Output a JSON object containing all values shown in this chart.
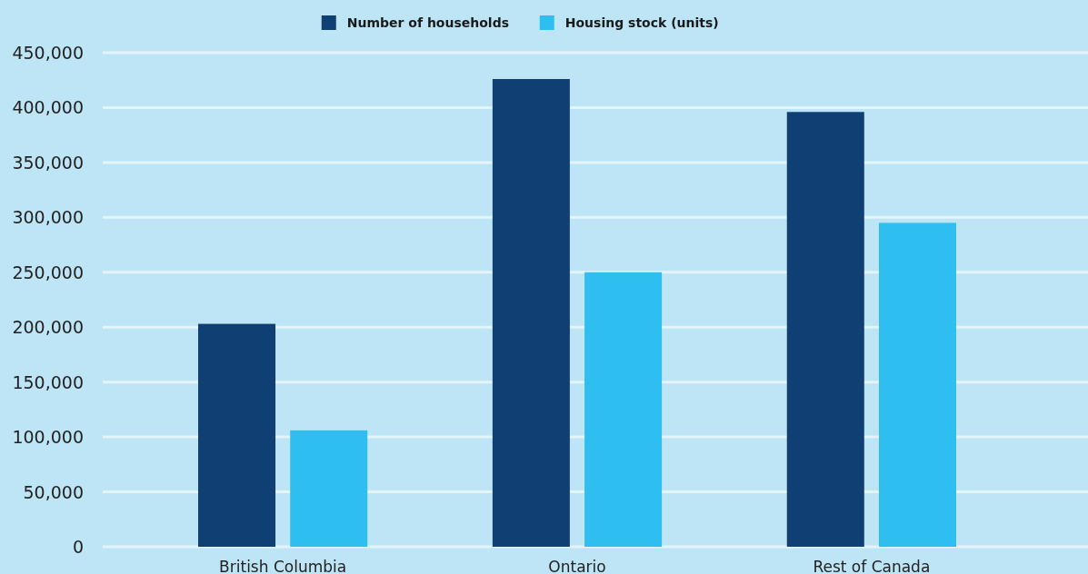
{
  "chart_data": {
    "type": "bar",
    "categories": [
      "British Columbia",
      "Ontario",
      "Rest of Canada"
    ],
    "series": [
      {
        "name": "Number of households",
        "color": "#0f3f73",
        "values": [
          203000,
          426000,
          396000
        ]
      },
      {
        "name": "Housing stock (units)",
        "color": "#2ebeef",
        "values": [
          106000,
          250000,
          295000
        ]
      }
    ],
    "ylim": [
      0,
      450000
    ],
    "yticks": [
      {
        "value": 0,
        "label": "0"
      },
      {
        "value": 50000,
        "label": "50,000"
      },
      {
        "value": 100000,
        "label": "100,000"
      },
      {
        "value": 150000,
        "label": "150,000"
      },
      {
        "value": 200000,
        "label": "200,000"
      },
      {
        "value": 250000,
        "label": "250,000"
      },
      {
        "value": 300000,
        "label": "300,000"
      },
      {
        "value": 350000,
        "label": "350,000"
      },
      {
        "value": 400000,
        "label": "400,000"
      },
      {
        "value": 450000,
        "label": "450,000"
      }
    ],
    "grid": "y",
    "legend": "top"
  }
}
